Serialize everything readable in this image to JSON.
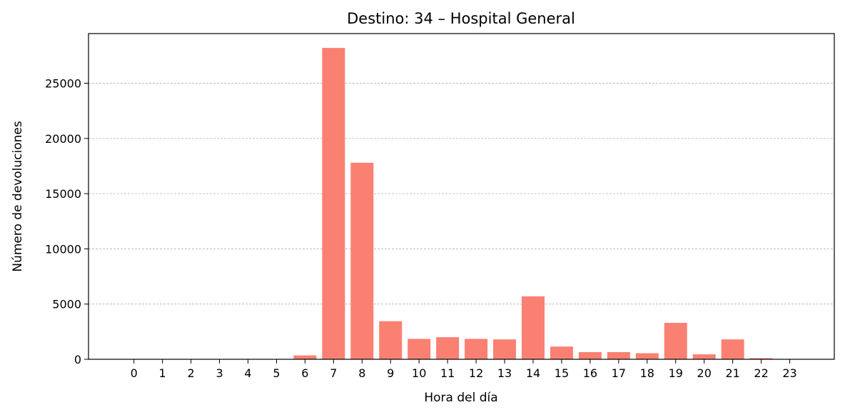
{
  "chart_data": {
    "type": "bar",
    "title": "Destino: 34 – Hospital General",
    "xlabel": "Hora del día",
    "ylabel": "Número de devoluciones",
    "categories": [
      "0",
      "1",
      "2",
      "3",
      "4",
      "5",
      "6",
      "7",
      "8",
      "9",
      "10",
      "11",
      "12",
      "13",
      "14",
      "15",
      "16",
      "17",
      "18",
      "19",
      "20",
      "21",
      "22",
      "23"
    ],
    "values": [
      0,
      0,
      0,
      0,
      0,
      0,
      350,
      28200,
      17800,
      3450,
      1850,
      2000,
      1850,
      1800,
      5700,
      1150,
      650,
      650,
      550,
      3300,
      450,
      1800,
      100,
      0
    ],
    "ylim": [
      0,
      29500
    ],
    "yticks": [
      0,
      5000,
      10000,
      15000,
      20000,
      25000
    ],
    "grid": "horizontal dashed",
    "bar_color": "#FA8072",
    "legend": "none"
  }
}
